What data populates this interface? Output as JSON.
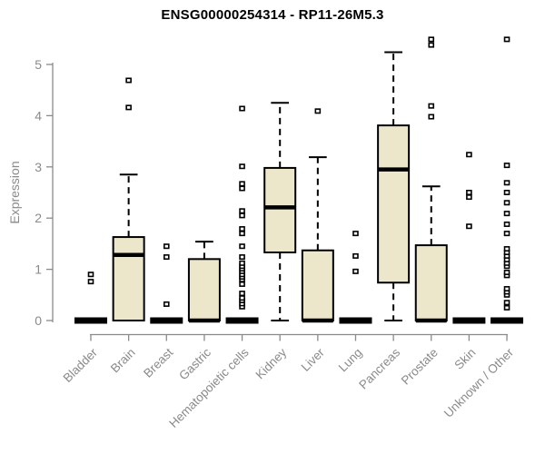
{
  "chart_data": {
    "type": "boxplot",
    "title": "ENSG00000254314 - RP11-26M5.3",
    "ylabel": "Expression",
    "xlabel": "",
    "ylim": [
      0,
      5.6
    ],
    "yticks": [
      0,
      1,
      2,
      3,
      4,
      5
    ],
    "grid": false,
    "legend": "none",
    "categories": [
      "Bladder",
      "Brain",
      "Breast",
      "Gastric",
      "Hematopoietic cells",
      "Kidney",
      "Liver",
      "Lung",
      "Pancreas",
      "Prostate",
      "Skin",
      "Unknown / Other"
    ],
    "series": [
      {
        "category": "Bladder",
        "low": 0,
        "q1": 0,
        "median": 0,
        "q3": 0,
        "high": 0,
        "outliers": [
          0.76,
          0.9
        ]
      },
      {
        "category": "Brain",
        "low": 0,
        "q1": 0,
        "median": 1.28,
        "q3": 1.63,
        "high": 2.85,
        "outliers": [
          4.16,
          4.69
        ]
      },
      {
        "category": "Breast",
        "low": 0,
        "q1": 0,
        "median": 0,
        "q3": 0,
        "high": 0,
        "outliers": [
          0.32,
          1.24,
          1.45
        ]
      },
      {
        "category": "Gastric",
        "low": 0,
        "q1": 0,
        "median": 0,
        "q3": 1.2,
        "high": 1.54,
        "outliers": []
      },
      {
        "category": "Hematopoietic cells",
        "low": 0,
        "q1": 0,
        "median": 0,
        "q3": 0,
        "high": 0,
        "outliers": [
          0.27,
          0.33,
          0.39,
          0.44,
          0.53,
          0.71,
          0.8,
          0.85,
          0.9,
          0.96,
          1.01,
          1.06,
          1.12,
          1.24,
          1.45,
          1.7,
          1.79,
          2.05,
          2.14,
          2.58,
          2.67,
          3.01,
          4.14
        ]
      },
      {
        "category": "Kidney",
        "low": 0,
        "q1": 1.33,
        "median": 2.21,
        "q3": 2.98,
        "high": 4.25,
        "outliers": []
      },
      {
        "category": "Liver",
        "low": 0,
        "q1": 0,
        "median": 0,
        "q3": 1.37,
        "high": 3.19,
        "outliers": [
          4.09
        ]
      },
      {
        "category": "Lung",
        "low": 0,
        "q1": 0,
        "median": 0,
        "q3": 0,
        "high": 0,
        "outliers": [
          0.96,
          1.26,
          1.7
        ]
      },
      {
        "category": "Pancreas",
        "low": 0,
        "q1": 0.74,
        "median": 2.95,
        "q3": 3.81,
        "high": 5.24,
        "outliers": []
      },
      {
        "category": "Prostate",
        "low": 0,
        "q1": 0,
        "median": 0,
        "q3": 1.47,
        "high": 2.62,
        "outliers": [
          3.98,
          4.19,
          5.38,
          5.49
        ]
      },
      {
        "category": "Skin",
        "low": 0,
        "q1": 0,
        "median": 0,
        "q3": 0,
        "high": 0,
        "outliers": [
          1.84,
          2.41,
          2.5,
          3.24
        ]
      },
      {
        "category": "Unknown / Other",
        "low": 0,
        "q1": 0,
        "median": 0,
        "q3": 0,
        "high": 0,
        "outliers": [
          0.25,
          0.35,
          0.5,
          0.56,
          0.62,
          0.88,
          0.94,
          1.06,
          1.12,
          1.19,
          1.26,
          1.33,
          1.4,
          1.7,
          1.88,
          2.09,
          2.3,
          2.5,
          2.69,
          3.03,
          5.49
        ]
      }
    ],
    "colors": {
      "box_fill": "#ece7cb",
      "box_stroke": "#000000",
      "median": "#000000",
      "whisker": "#000000",
      "outlier_stroke": "#000000",
      "outlier_fill": "#ffffff",
      "axis": "#8a8a8a",
      "tick_label": "#8a8a8a",
      "title": "#000000",
      "background": "#ffffff"
    }
  }
}
